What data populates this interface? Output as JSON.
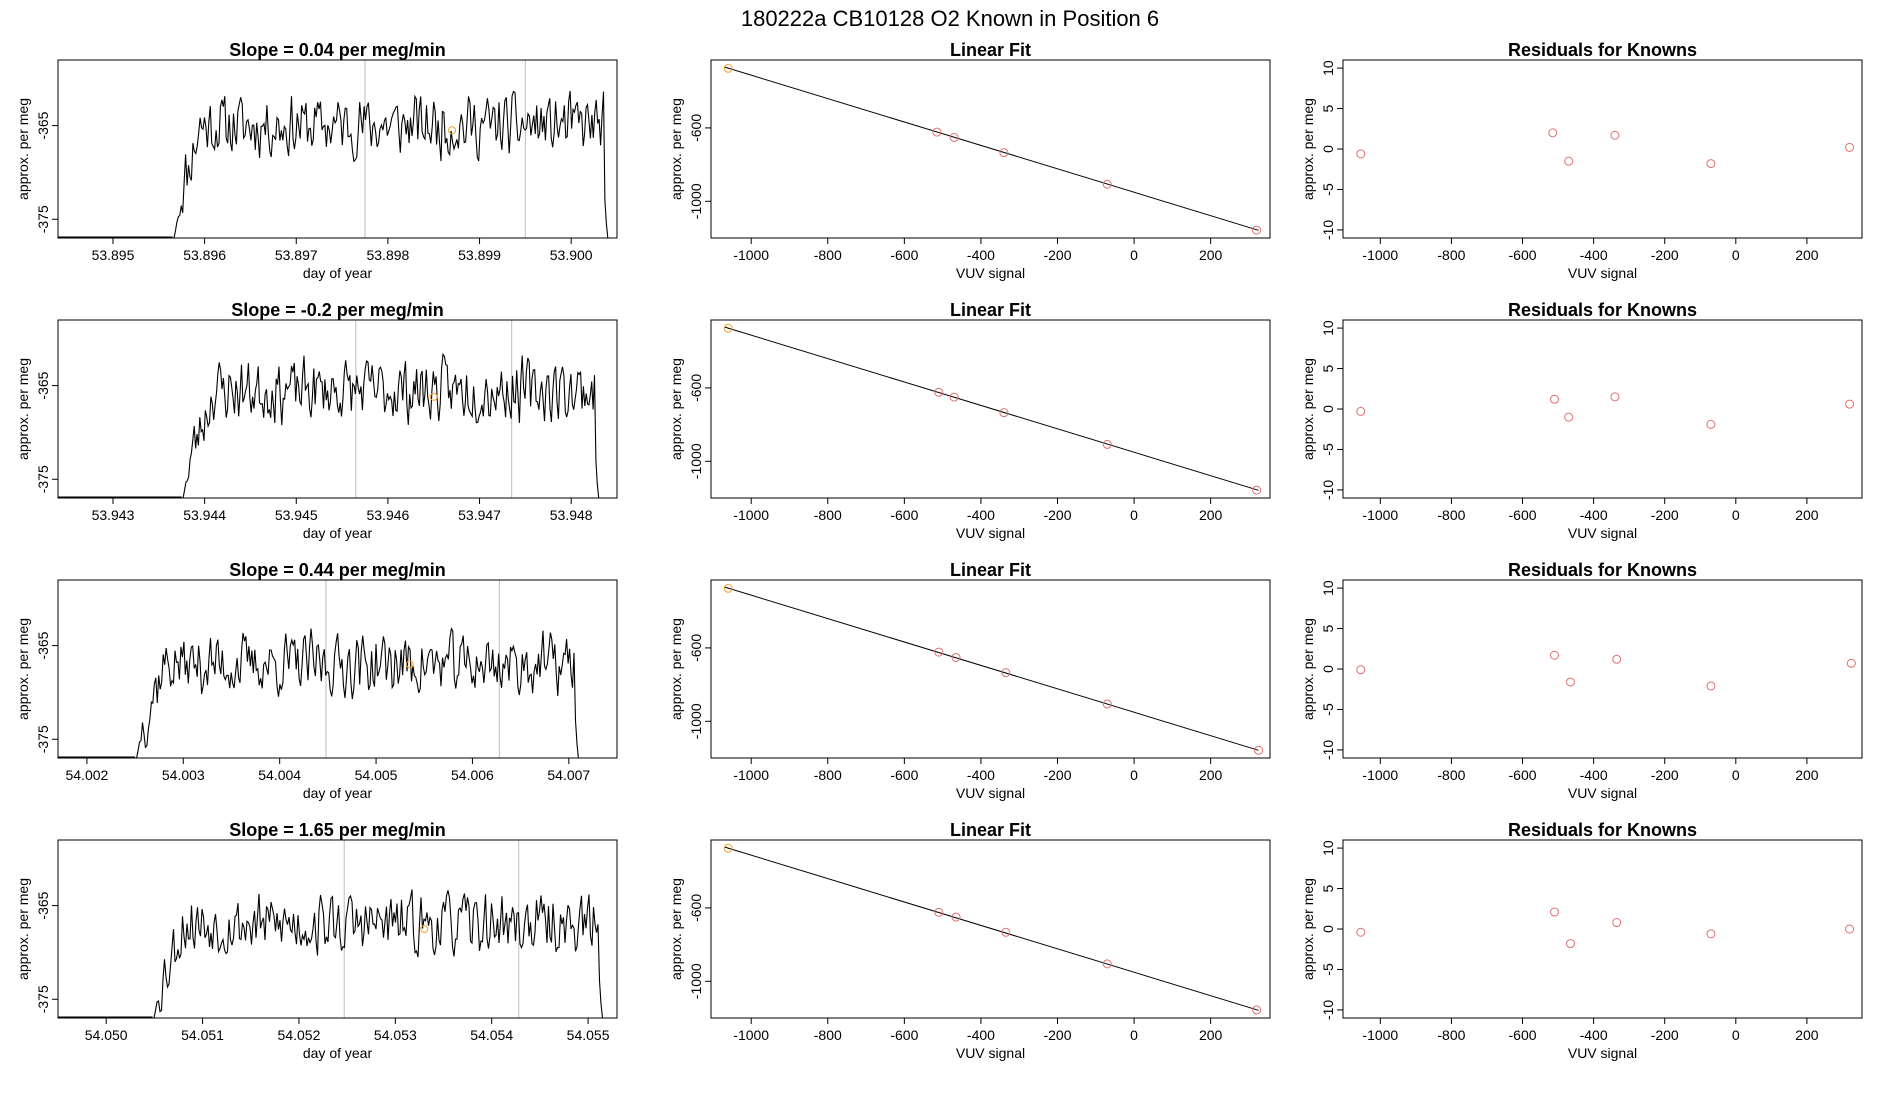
{
  "suptitle": "180222a     CB10128    O2 Known in Position  6",
  "colors": {
    "line": "#000000",
    "marker": "#e07070",
    "highlight": "#f0a030",
    "vline": "#c8c8c8",
    "frame": "#000000"
  },
  "rows": [
    {
      "timeseries": {
        "title": "Slope =  0.04  per meg/min",
        "xlabel": "day of year",
        "ylabel": "approx. per meg",
        "xlim": [
          53.8944,
          53.9005
        ],
        "ylim": [
          -377,
          -358
        ],
        "xticks": [
          "53.895",
          "53.896",
          "53.897",
          "53.898",
          "53.899",
          "53.900"
        ],
        "xtick_values": [
          53.895,
          53.896,
          53.897,
          53.898,
          53.899,
          53.9
        ],
        "yticks": [
          "-375",
          "-365"
        ],
        "ytick_values": [
          -375,
          -365
        ],
        "segment_start": 53.8944,
        "data_start": 53.89565,
        "data_end": 53.9004,
        "rise_at": 53.89595,
        "level": -365,
        "vlines": [
          53.89775,
          53.8995
        ],
        "highlight": {
          "x": 53.8987,
          "y": -365.5
        },
        "seed": 11
      },
      "fit": {
        "title": "Linear Fit",
        "xlabel": "VUV signal",
        "ylabel": "approx. per meg",
        "xlim": [
          -1105,
          355
        ],
        "ylim": [
          -1200,
          -230
        ],
        "xticks": [
          "-1000",
          "-800",
          "-600",
          "-400",
          "-200",
          "0",
          "200"
        ],
        "xtick_values": [
          -1000,
          -800,
          -600,
          -400,
          -200,
          0,
          200
        ],
        "yticks": [
          "-1000",
          "-600"
        ],
        "ytick_values": [
          -1000,
          -600
        ],
        "line": [
          [
            -1070,
            -268
          ],
          [
            325,
            -1158
          ]
        ],
        "points": [
          [
            -1060,
            -275
          ],
          [
            -515,
            -623
          ],
          [
            -470,
            -652
          ],
          [
            -340,
            -735
          ],
          [
            -70,
            -907
          ],
          [
            320,
            -1157
          ]
        ],
        "highlight_index": 0
      },
      "residuals": {
        "title": "Residuals for Knowns",
        "xlabel": "VUV signal",
        "ylabel": "approx. per meg",
        "xlim": [
          -1105,
          355
        ],
        "ylim": [
          -11,
          11
        ],
        "xticks": [
          "-1000",
          "-800",
          "-600",
          "-400",
          "-200",
          "0",
          "200"
        ],
        "xtick_values": [
          -1000,
          -800,
          -600,
          -400,
          -200,
          0,
          200
        ],
        "yticks": [
          "-10",
          "-5",
          "0",
          "5",
          "10"
        ],
        "ytick_values": [
          -10,
          -5,
          0,
          5,
          10
        ],
        "points": [
          [
            -1055,
            -0.6
          ],
          [
            -515,
            2.0
          ],
          [
            -470,
            -1.5
          ],
          [
            -340,
            1.7
          ],
          [
            -70,
            -1.8
          ],
          [
            320,
            0.2
          ]
        ]
      }
    },
    {
      "timeseries": {
        "title": "Slope =  -0.2  per meg/min",
        "xlabel": "day of year",
        "ylabel": "approx. per meg",
        "xlim": [
          53.9424,
          53.9485
        ],
        "ylim": [
          -377,
          -358
        ],
        "xticks": [
          "53.943",
          "53.944",
          "53.945",
          "53.946",
          "53.947",
          "53.948"
        ],
        "xtick_values": [
          53.943,
          53.944,
          53.945,
          53.946,
          53.947,
          53.948
        ],
        "yticks": [
          "-375",
          "-365"
        ],
        "ytick_values": [
          -375,
          -365
        ],
        "segment_start": 53.9424,
        "data_start": 53.94375,
        "data_end": 53.9483,
        "rise_at": 53.9441,
        "level": -365.5,
        "vlines": [
          53.94565,
          53.94735
        ],
        "highlight": {
          "x": 53.9465,
          "y": -366.2
        },
        "seed": 23
      },
      "fit": {
        "title": "Linear Fit",
        "xlabel": "VUV signal",
        "ylabel": "approx. per meg",
        "xlim": [
          -1105,
          355
        ],
        "ylim": [
          -1200,
          -230
        ],
        "xticks": [
          "-1000",
          "-800",
          "-600",
          "-400",
          "-200",
          "0",
          "200"
        ],
        "xtick_values": [
          -1000,
          -800,
          -600,
          -400,
          -200,
          0,
          200
        ],
        "yticks": [
          "-1000",
          "-600"
        ],
        "ytick_values": [
          -1000,
          -600
        ],
        "line": [
          [
            -1070,
            -268
          ],
          [
            325,
            -1158
          ]
        ],
        "points": [
          [
            -1060,
            -275
          ],
          [
            -510,
            -624
          ],
          [
            -470,
            -650
          ],
          [
            -340,
            -735
          ],
          [
            -70,
            -908
          ],
          [
            320,
            -1157
          ]
        ],
        "highlight_index": 0
      },
      "residuals": {
        "title": "Residuals for Knowns",
        "xlabel": "VUV signal",
        "ylabel": "approx. per meg",
        "xlim": [
          -1105,
          355
        ],
        "ylim": [
          -11,
          11
        ],
        "xticks": [
          "-1000",
          "-800",
          "-600",
          "-400",
          "-200",
          "0",
          "200"
        ],
        "xtick_values": [
          -1000,
          -800,
          -600,
          -400,
          -200,
          0,
          200
        ],
        "yticks": [
          "-10",
          "-5",
          "0",
          "5",
          "10"
        ],
        "ytick_values": [
          -10,
          -5,
          0,
          5,
          10
        ],
        "points": [
          [
            -1055,
            -0.3
          ],
          [
            -510,
            1.2
          ],
          [
            -470,
            -1.0
          ],
          [
            -340,
            1.5
          ],
          [
            -70,
            -1.9
          ],
          [
            320,
            0.6
          ]
        ]
      }
    },
    {
      "timeseries": {
        "title": "Slope =  0.44  per meg/min",
        "xlabel": "day of year",
        "ylabel": "approx. per meg",
        "xlim": [
          54.0017,
          54.0075
        ],
        "ylim": [
          -377,
          -358
        ],
        "xticks": [
          "54.002",
          "54.003",
          "54.004",
          "54.005",
          "54.006",
          "54.007"
        ],
        "xtick_values": [
          54.002,
          54.003,
          54.004,
          54.005,
          54.006,
          54.007
        ],
        "yticks": [
          "-375",
          "-365"
        ],
        "ytick_values": [
          -375,
          -365
        ],
        "segment_start": 54.0017,
        "data_start": 54.0025,
        "data_end": 54.0071,
        "rise_at": 54.0028,
        "level": -367,
        "vlines": [
          54.00448,
          54.00628
        ],
        "highlight": {
          "x": 54.00535,
          "y": -367
        },
        "seed": 37
      },
      "fit": {
        "title": "Linear Fit",
        "xlabel": "VUV signal",
        "ylabel": "approx. per meg",
        "xlim": [
          -1105,
          355
        ],
        "ylim": [
          -1200,
          -230
        ],
        "xticks": [
          "-1000",
          "-800",
          "-600",
          "-400",
          "-200",
          "0",
          "200"
        ],
        "xtick_values": [
          -1000,
          -800,
          -600,
          -400,
          -200,
          0,
          200
        ],
        "yticks": [
          "-1000",
          "-600"
        ],
        "ytick_values": [
          -1000,
          -600
        ],
        "line": [
          [
            -1070,
            -268
          ],
          [
            325,
            -1158
          ]
        ],
        "points": [
          [
            -1060,
            -275
          ],
          [
            -510,
            -623
          ],
          [
            -465,
            -652
          ],
          [
            -335,
            -735
          ],
          [
            -70,
            -906
          ],
          [
            325,
            -1158
          ]
        ],
        "highlight_index": 0
      },
      "residuals": {
        "title": "Residuals for Knowns",
        "xlabel": "VUV signal",
        "ylabel": "approx. per meg",
        "xlim": [
          -1105,
          355
        ],
        "ylim": [
          -11,
          11
        ],
        "xticks": [
          "-1000",
          "-800",
          "-600",
          "-400",
          "-200",
          "0",
          "200"
        ],
        "xtick_values": [
          -1000,
          -800,
          -600,
          -400,
          -200,
          0,
          200
        ],
        "yticks": [
          "-10",
          "-5",
          "0",
          "5",
          "10"
        ],
        "ytick_values": [
          -10,
          -5,
          0,
          5,
          10
        ],
        "points": [
          [
            -1055,
            -0.1
          ],
          [
            -510,
            1.7
          ],
          [
            -465,
            -1.6
          ],
          [
            -335,
            1.2
          ],
          [
            -70,
            -2.1
          ],
          [
            325,
            0.7
          ]
        ]
      }
    },
    {
      "timeseries": {
        "title": "Slope =  1.65  per meg/min",
        "xlabel": "day of year",
        "ylabel": "approx. per meg",
        "xlim": [
          54.0495,
          54.0553
        ],
        "ylim": [
          -377,
          -358
        ],
        "xticks": [
          "54.050",
          "54.051",
          "54.052",
          "54.053",
          "54.054",
          "54.055"
        ],
        "xtick_values": [
          54.05,
          54.051,
          54.052,
          54.053,
          54.054,
          54.055
        ],
        "yticks": [
          "-375",
          "-365"
        ],
        "ytick_values": [
          -375,
          -365
        ],
        "segment_start": 54.0495,
        "data_start": 54.05048,
        "data_end": 54.05515,
        "rise_at": 54.0508,
        "level": -367,
        "vlines": [
          54.05247,
          54.05428
        ],
        "highlight": {
          "x": 54.0533,
          "y": -367.5
        },
        "seed": 53
      },
      "fit": {
        "title": "Linear Fit",
        "xlabel": "VUV signal",
        "ylabel": "approx. per meg",
        "xlim": [
          -1105,
          355
        ],
        "ylim": [
          -1200,
          -230
        ],
        "xticks": [
          "-1000",
          "-800",
          "-600",
          "-400",
          "-200",
          "0",
          "200"
        ],
        "xtick_values": [
          -1000,
          -800,
          -600,
          -400,
          -200,
          0,
          200
        ],
        "yticks": [
          "-1000",
          "-600"
        ],
        "ytick_values": [
          -1000,
          -600
        ],
        "line": [
          [
            -1070,
            -268
          ],
          [
            325,
            -1158
          ]
        ],
        "points": [
          [
            -1060,
            -275
          ],
          [
            -510,
            -624
          ],
          [
            -465,
            -650
          ],
          [
            -335,
            -733
          ],
          [
            -70,
            -905
          ],
          [
            320,
            -1156
          ]
        ],
        "highlight_index": 0
      },
      "residuals": {
        "title": "Residuals for Knowns",
        "xlabel": "VUV signal",
        "ylabel": "approx. per meg",
        "xlim": [
          -1105,
          355
        ],
        "ylim": [
          -11,
          11
        ],
        "xticks": [
          "-1000",
          "-800",
          "-600",
          "-400",
          "-200",
          "0",
          "200"
        ],
        "xtick_values": [
          -1000,
          -800,
          -600,
          -400,
          -200,
          0,
          200
        ],
        "yticks": [
          "-10",
          "-5",
          "0",
          "5",
          "10"
        ],
        "ytick_values": [
          -10,
          -5,
          0,
          5,
          10
        ],
        "points": [
          [
            -1055,
            -0.4
          ],
          [
            -510,
            2.1
          ],
          [
            -465,
            -1.8
          ],
          [
            -335,
            0.8
          ],
          [
            -70,
            -0.6
          ],
          [
            320,
            0.0
          ]
        ]
      }
    }
  ]
}
